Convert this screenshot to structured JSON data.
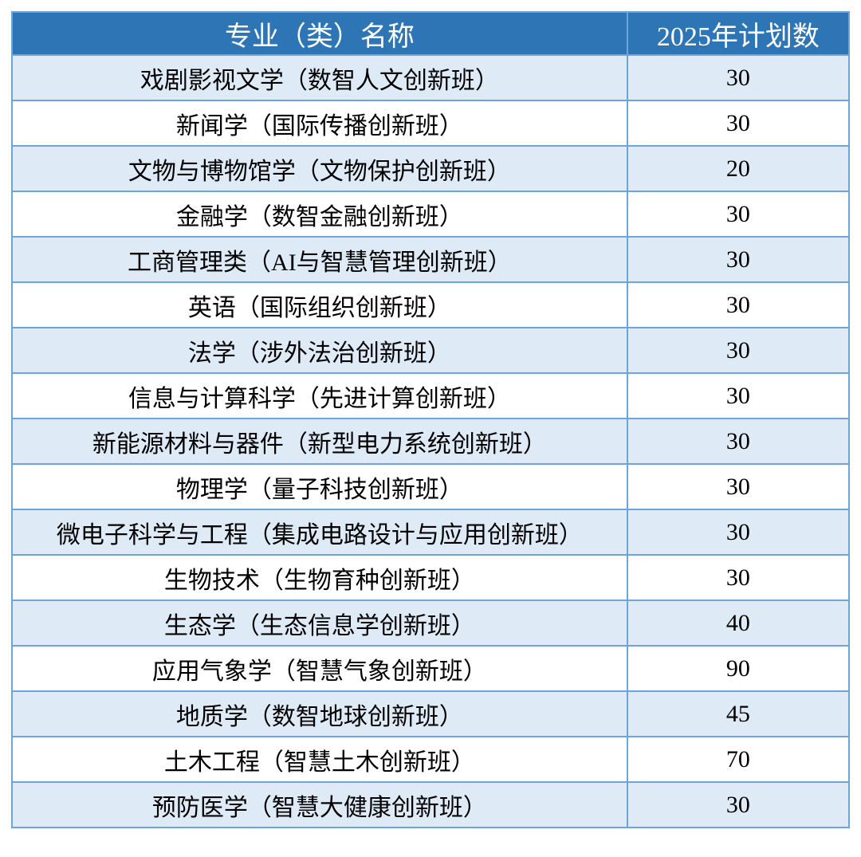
{
  "table": {
    "columns": [
      {
        "label": "专业（类）名称"
      },
      {
        "label": "2025年计划数"
      }
    ],
    "rows": [
      {
        "major": "戏剧影视文学（数智人文创新班）",
        "plan": "30"
      },
      {
        "major": "新闻学（国际传播创新班）",
        "plan": "30"
      },
      {
        "major": "文物与博物馆学（文物保护创新班）",
        "plan": "20"
      },
      {
        "major": "金融学（数智金融创新班）",
        "plan": "30"
      },
      {
        "major": "工商管理类（AI与智慧管理创新班）",
        "plan": "30"
      },
      {
        "major": "英语（国际组织创新班）",
        "plan": "30"
      },
      {
        "major": "法学（涉外法治创新班）",
        "plan": "30"
      },
      {
        "major": "信息与计算科学（先进计算创新班）",
        "plan": "30"
      },
      {
        "major": "新能源材料与器件（新型电力系统创新班）",
        "plan": "30"
      },
      {
        "major": "物理学（量子科技创新班）",
        "plan": "30"
      },
      {
        "major": "微电子科学与工程（集成电路设计与应用创新班）",
        "plan": "30"
      },
      {
        "major": "生物技术（生物育种创新班）",
        "plan": "30"
      },
      {
        "major": "生态学（生态信息学创新班）",
        "plan": "40"
      },
      {
        "major": "应用气象学（智慧气象创新班）",
        "plan": "90"
      },
      {
        "major": "地质学（数智地球创新班）",
        "plan": "45"
      },
      {
        "major": "土木工程（智慧土木创新班）",
        "plan": "70"
      },
      {
        "major": "预防医学（智慧大健康创新班）",
        "plan": "30"
      }
    ]
  },
  "colors": {
    "header_bg": "#2E75B6",
    "header_text": "#FFFFFF",
    "band_bg": "#DEEBF7",
    "plain_bg": "#FFFFFF",
    "border": "#6FA3DB",
    "body_text": "#000000"
  }
}
